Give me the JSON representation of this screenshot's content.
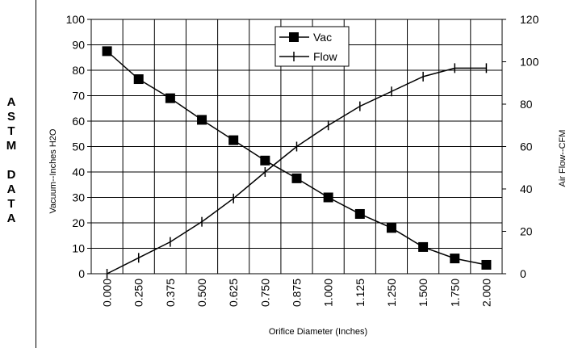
{
  "side_label": [
    "A",
    "S",
    "T",
    "M",
    "",
    "D",
    "A",
    "T",
    "A"
  ],
  "chart_data": {
    "type": "line",
    "xlabel": "Orifice Diameter (Inches)",
    "ylabel_left": "Vacuum--Inches H2O",
    "ylabel_right": "Air Flow--CFM",
    "categories": [
      "0.000",
      "0.250",
      "0.375",
      "0.500",
      "0.625",
      "0.750",
      "0.875",
      "1.000",
      "1.125",
      "1.250",
      "1.500",
      "1.750",
      "2.000"
    ],
    "y_left_ticks": [
      "0",
      "10",
      "20",
      "30",
      "40",
      "50",
      "60",
      "70",
      "80",
      "90",
      "100"
    ],
    "y_right_ticks": [
      "0",
      "20",
      "40",
      "60",
      "80",
      "100",
      "120"
    ],
    "y_left_range": [
      0,
      100
    ],
    "y_right_range": [
      0,
      120
    ],
    "grid": true,
    "legend_position": "top-center",
    "series": [
      {
        "name": "Vac",
        "axis": "left",
        "marker": "square",
        "color": "#000000",
        "values": [
          87.5,
          76.5,
          69,
          60.5,
          52.5,
          44.5,
          37.5,
          30,
          23.5,
          18,
          10.5,
          6,
          3.5
        ]
      },
      {
        "name": "Flow",
        "axis": "right",
        "marker": "tick",
        "color": "#000000",
        "values": [
          0,
          7.5,
          15,
          24.5,
          35.5,
          48,
          60,
          70,
          79,
          86,
          93,
          97,
          97
        ]
      }
    ]
  }
}
